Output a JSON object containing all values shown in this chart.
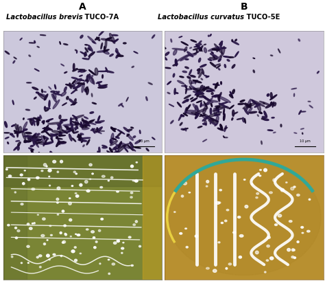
{
  "title_A": "A",
  "title_B": "B",
  "label_italic_A": "Lactobacillus brevis",
  "label_bold_A": " TUCO-7A",
  "label_italic_B": "Lactobacillus curvatus",
  "label_bold_B": " TUCO-5E",
  "micro_bg_A": "#ccc8dc",
  "micro_bg_B": "#cfc8dc",
  "plate_bg_A": "#7a8535",
  "plate_bg_B": "#b89030",
  "fig_bg": "#ffffff",
  "bacteria_colors": [
    "#1a0a30",
    "#2a1848",
    "#150828",
    "#221040"
  ],
  "white_colony": "#ffffff",
  "scale_bar_color": "#000000"
}
